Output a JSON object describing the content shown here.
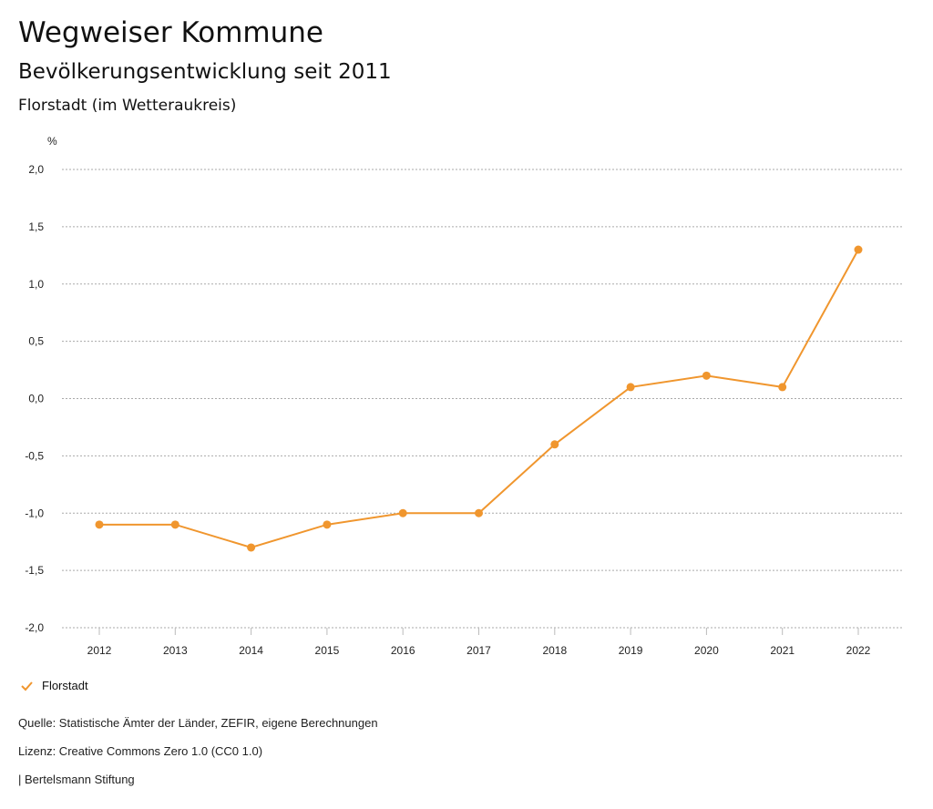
{
  "header": {
    "title": "Wegweiser Kommune",
    "subtitle": "Bevölkerungsentwicklung seit 2011",
    "region": "Florstadt (im Wetteraukreis)"
  },
  "chart_data": {
    "type": "line",
    "ylabel": "%",
    "ylim": [
      -2.0,
      2.0
    ],
    "yticks": [
      "2,0",
      "1,5",
      "1,0",
      "0,5",
      "0,0",
      "-0,5",
      "-1,0",
      "-1,5",
      "-2,0"
    ],
    "ytick_values": [
      2.0,
      1.5,
      1.0,
      0.5,
      0.0,
      -0.5,
      -1.0,
      -1.5,
      -2.0
    ],
    "categories": [
      "2012",
      "2013",
      "2014",
      "2015",
      "2016",
      "2017",
      "2018",
      "2019",
      "2020",
      "2021",
      "2022"
    ],
    "series": [
      {
        "name": "Florstadt",
        "color": "#f0962e",
        "values": [
          -1.1,
          -1.1,
          -1.3,
          -1.1,
          -1.0,
          -1.0,
          -0.4,
          0.1,
          0.2,
          0.1,
          1.3
        ]
      }
    ],
    "grid": true,
    "legend": "bottom-left"
  },
  "footer": {
    "source": "Quelle: Statistische Ämter der Länder, ZEFIR, eigene Berechnungen",
    "license": "Lizenz: Creative Commons Zero 1.0 (CC0 1.0)",
    "publisher": "| Bertelsmann Stiftung"
  }
}
